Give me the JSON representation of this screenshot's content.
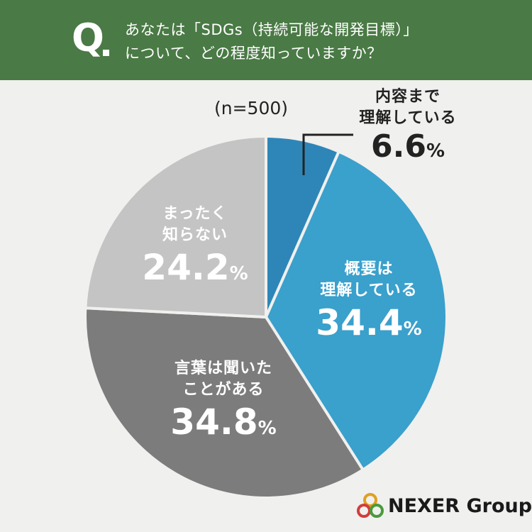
{
  "header": {
    "q_letter": "Q",
    "question_line1": "あなたは「SDGs（持続可能な開発目標）」",
    "question_line2": "について、どの程度知っていますか？"
  },
  "sample_size": "(n=500)",
  "colors": {
    "header_bg": "#4a7a45",
    "slice1": "#2e86b8",
    "slice2": "#3aa0cc",
    "slice3": "#7c7c7c",
    "slice4": "#c4c4c4"
  },
  "chart_data": {
    "type": "pie",
    "title": "あなたは「SDGs（持続可能な開発目標）」について、どの程度知っていますか？",
    "start_angle": "12 o'clock, clockwise",
    "slices": [
      {
        "label_line1": "内容まで",
        "label_line2": "理解している",
        "value": 6.6,
        "value_text": "6.6",
        "unit": "%"
      },
      {
        "label_line1": "概要は",
        "label_line2": "理解している",
        "value": 34.4,
        "value_text": "34.4",
        "unit": "%"
      },
      {
        "label_line1": "言葉は聞いた",
        "label_line2": "ことがある",
        "value": 34.8,
        "value_text": "34.8",
        "unit": "%"
      },
      {
        "label_line1": "まったく",
        "label_line2": "知らない",
        "value": 24.2,
        "value_text": "24.2",
        "unit": "%"
      }
    ]
  },
  "logo": {
    "text": "NEXER Group",
    "icon": "nexer-rings-logo"
  }
}
